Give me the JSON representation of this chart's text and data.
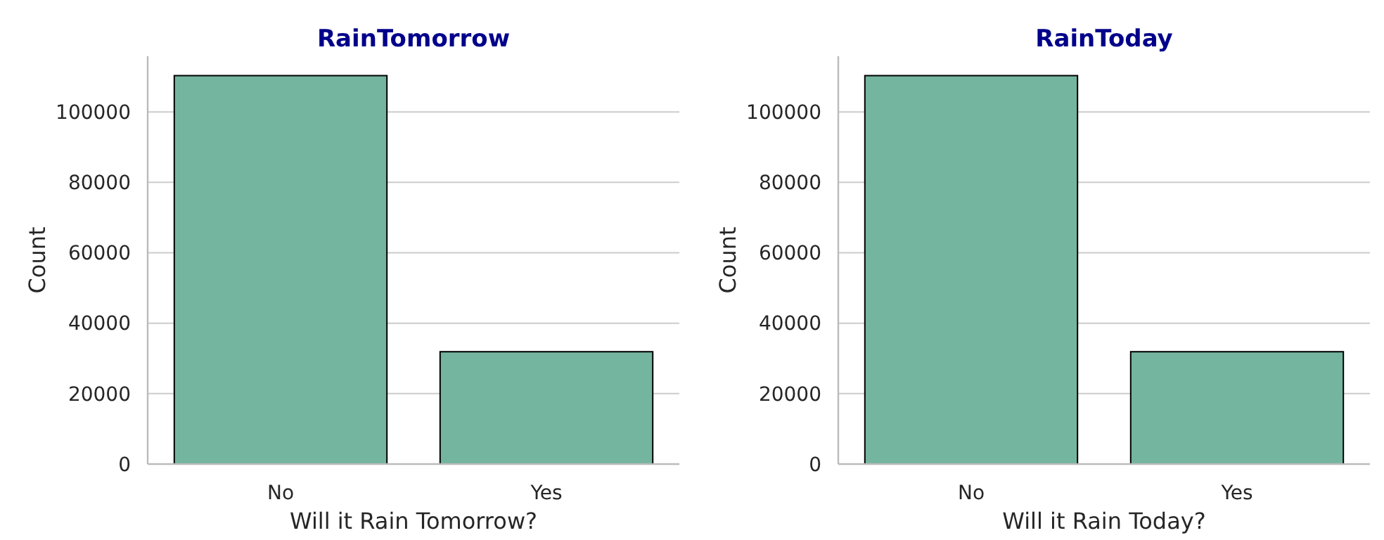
{
  "chart_data": [
    {
      "type": "bar",
      "title": "RainTomorrow",
      "xlabel": "Will it Rain Tomorrow?",
      "ylabel": "Count",
      "categories": [
        "No",
        "Yes"
      ],
      "values": [
        110300,
        31900
      ],
      "color": "#74b59f",
      "ylim": [
        0,
        115800
      ],
      "yticks": [
        0,
        20000,
        40000,
        60000,
        80000,
        100000
      ],
      "grid": "y"
    },
    {
      "type": "bar",
      "title": "RainToday",
      "xlabel": "Will it Rain Today?",
      "ylabel": "Count",
      "categories": [
        "No",
        "Yes"
      ],
      "values": [
        110300,
        31900
      ],
      "color": "#74b59f",
      "ylim": [
        0,
        115800
      ],
      "yticks": [
        0,
        20000,
        40000,
        60000,
        80000,
        100000
      ],
      "grid": "y"
    }
  ]
}
